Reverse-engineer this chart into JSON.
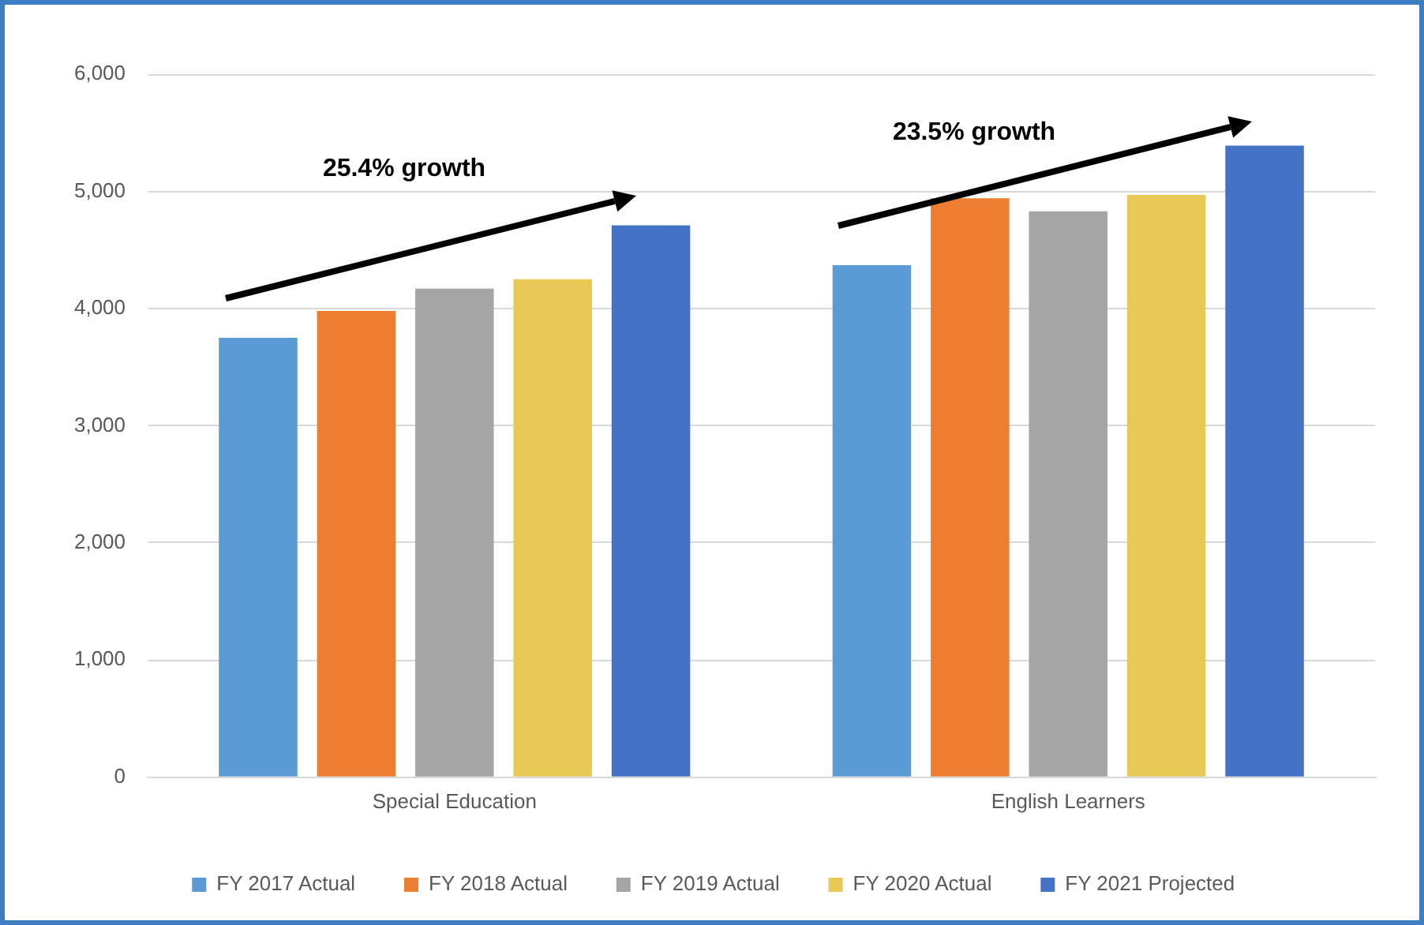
{
  "chart_data": {
    "type": "bar",
    "categories": [
      "Special Education",
      "English Learners"
    ],
    "series": [
      {
        "name": "FY 2017 Actual",
        "color": "#5b9bd5",
        "values": [
          3750,
          4370
        ]
      },
      {
        "name": "FY 2018 Actual",
        "color": "#ed7d31",
        "values": [
          3980,
          4940
        ]
      },
      {
        "name": "FY 2019 Actual",
        "color": "#a5a5a5",
        "values": [
          4170,
          4830
        ]
      },
      {
        "name": "FY 2020 Actual",
        "color": "#e9c955",
        "values": [
          4250,
          4970
        ]
      },
      {
        "name": "FY 2021 Projected",
        "color": "#4472c4",
        "values": [
          4710,
          5390
        ]
      }
    ],
    "ylim": [
      0,
      6000
    ],
    "yticks": [
      {
        "value": 0,
        "label": "0"
      },
      {
        "value": 1000,
        "label": "1,000"
      },
      {
        "value": 2000,
        "label": "2,000"
      },
      {
        "value": 3000,
        "label": "3,000"
      },
      {
        "value": 4000,
        "label": "4,000"
      },
      {
        "value": 5000,
        "label": "5,000"
      },
      {
        "value": 6000,
        "label": "6,000"
      }
    ],
    "grid": "y",
    "legend": "bottom",
    "annotations": [
      "25.4% growth",
      "23.5% growth"
    ]
  }
}
